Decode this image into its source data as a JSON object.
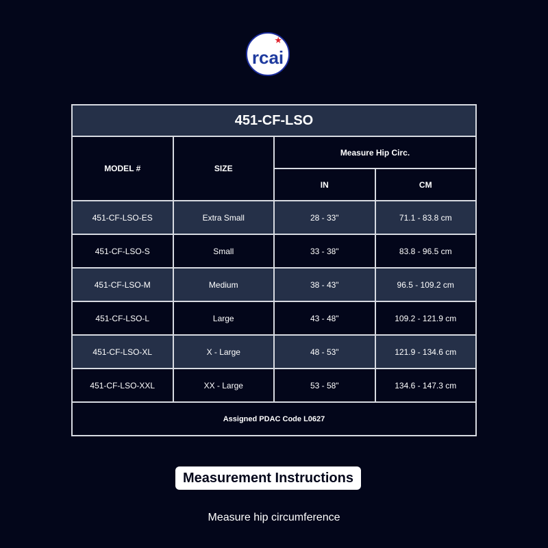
{
  "logo": {
    "text": "rcai",
    "star": "★"
  },
  "table": {
    "title": "451-CF-LSO",
    "headers": {
      "model": "MODEL #",
      "size": "SIZE",
      "measure": "Measure Hip Circ.",
      "in": "IN",
      "cm": "CM"
    },
    "rows": [
      {
        "model": "451-CF-LSO-ES",
        "size": "Extra Small",
        "in": "28 - 33\"",
        "cm": "71.1 - 83.8 cm"
      },
      {
        "model": "451-CF-LSO-S",
        "size": "Small",
        "in": "33 - 38\"",
        "cm": "83.8 - 96.5 cm"
      },
      {
        "model": "451-CF-LSO-M",
        "size": "Medium",
        "in": "38 - 43\"",
        "cm": "96.5 - 109.2 cm"
      },
      {
        "model": "451-CF-LSO-L",
        "size": "Large",
        "in": "43 - 48\"",
        "cm": "109.2 - 121.9 cm"
      },
      {
        "model": "451-CF-LSO-XL",
        "size": "X - Large",
        "in": "48 - 53\"",
        "cm": "121.9 - 134.6 cm"
      },
      {
        "model": "451-CF-LSO-XXL",
        "size": "XX - Large",
        "in": "53 - 58\"",
        "cm": "134.6 - 147.3 cm"
      }
    ],
    "footer": "Assigned PDAC Code L0627"
  },
  "instructions": {
    "heading": "Measurement Instructions",
    "text": "Measure hip circumference"
  },
  "colors": {
    "background": "#03061a",
    "row_alt": "#253048",
    "logo_blue": "#1e3a9e",
    "star_red": "#e0252f"
  }
}
